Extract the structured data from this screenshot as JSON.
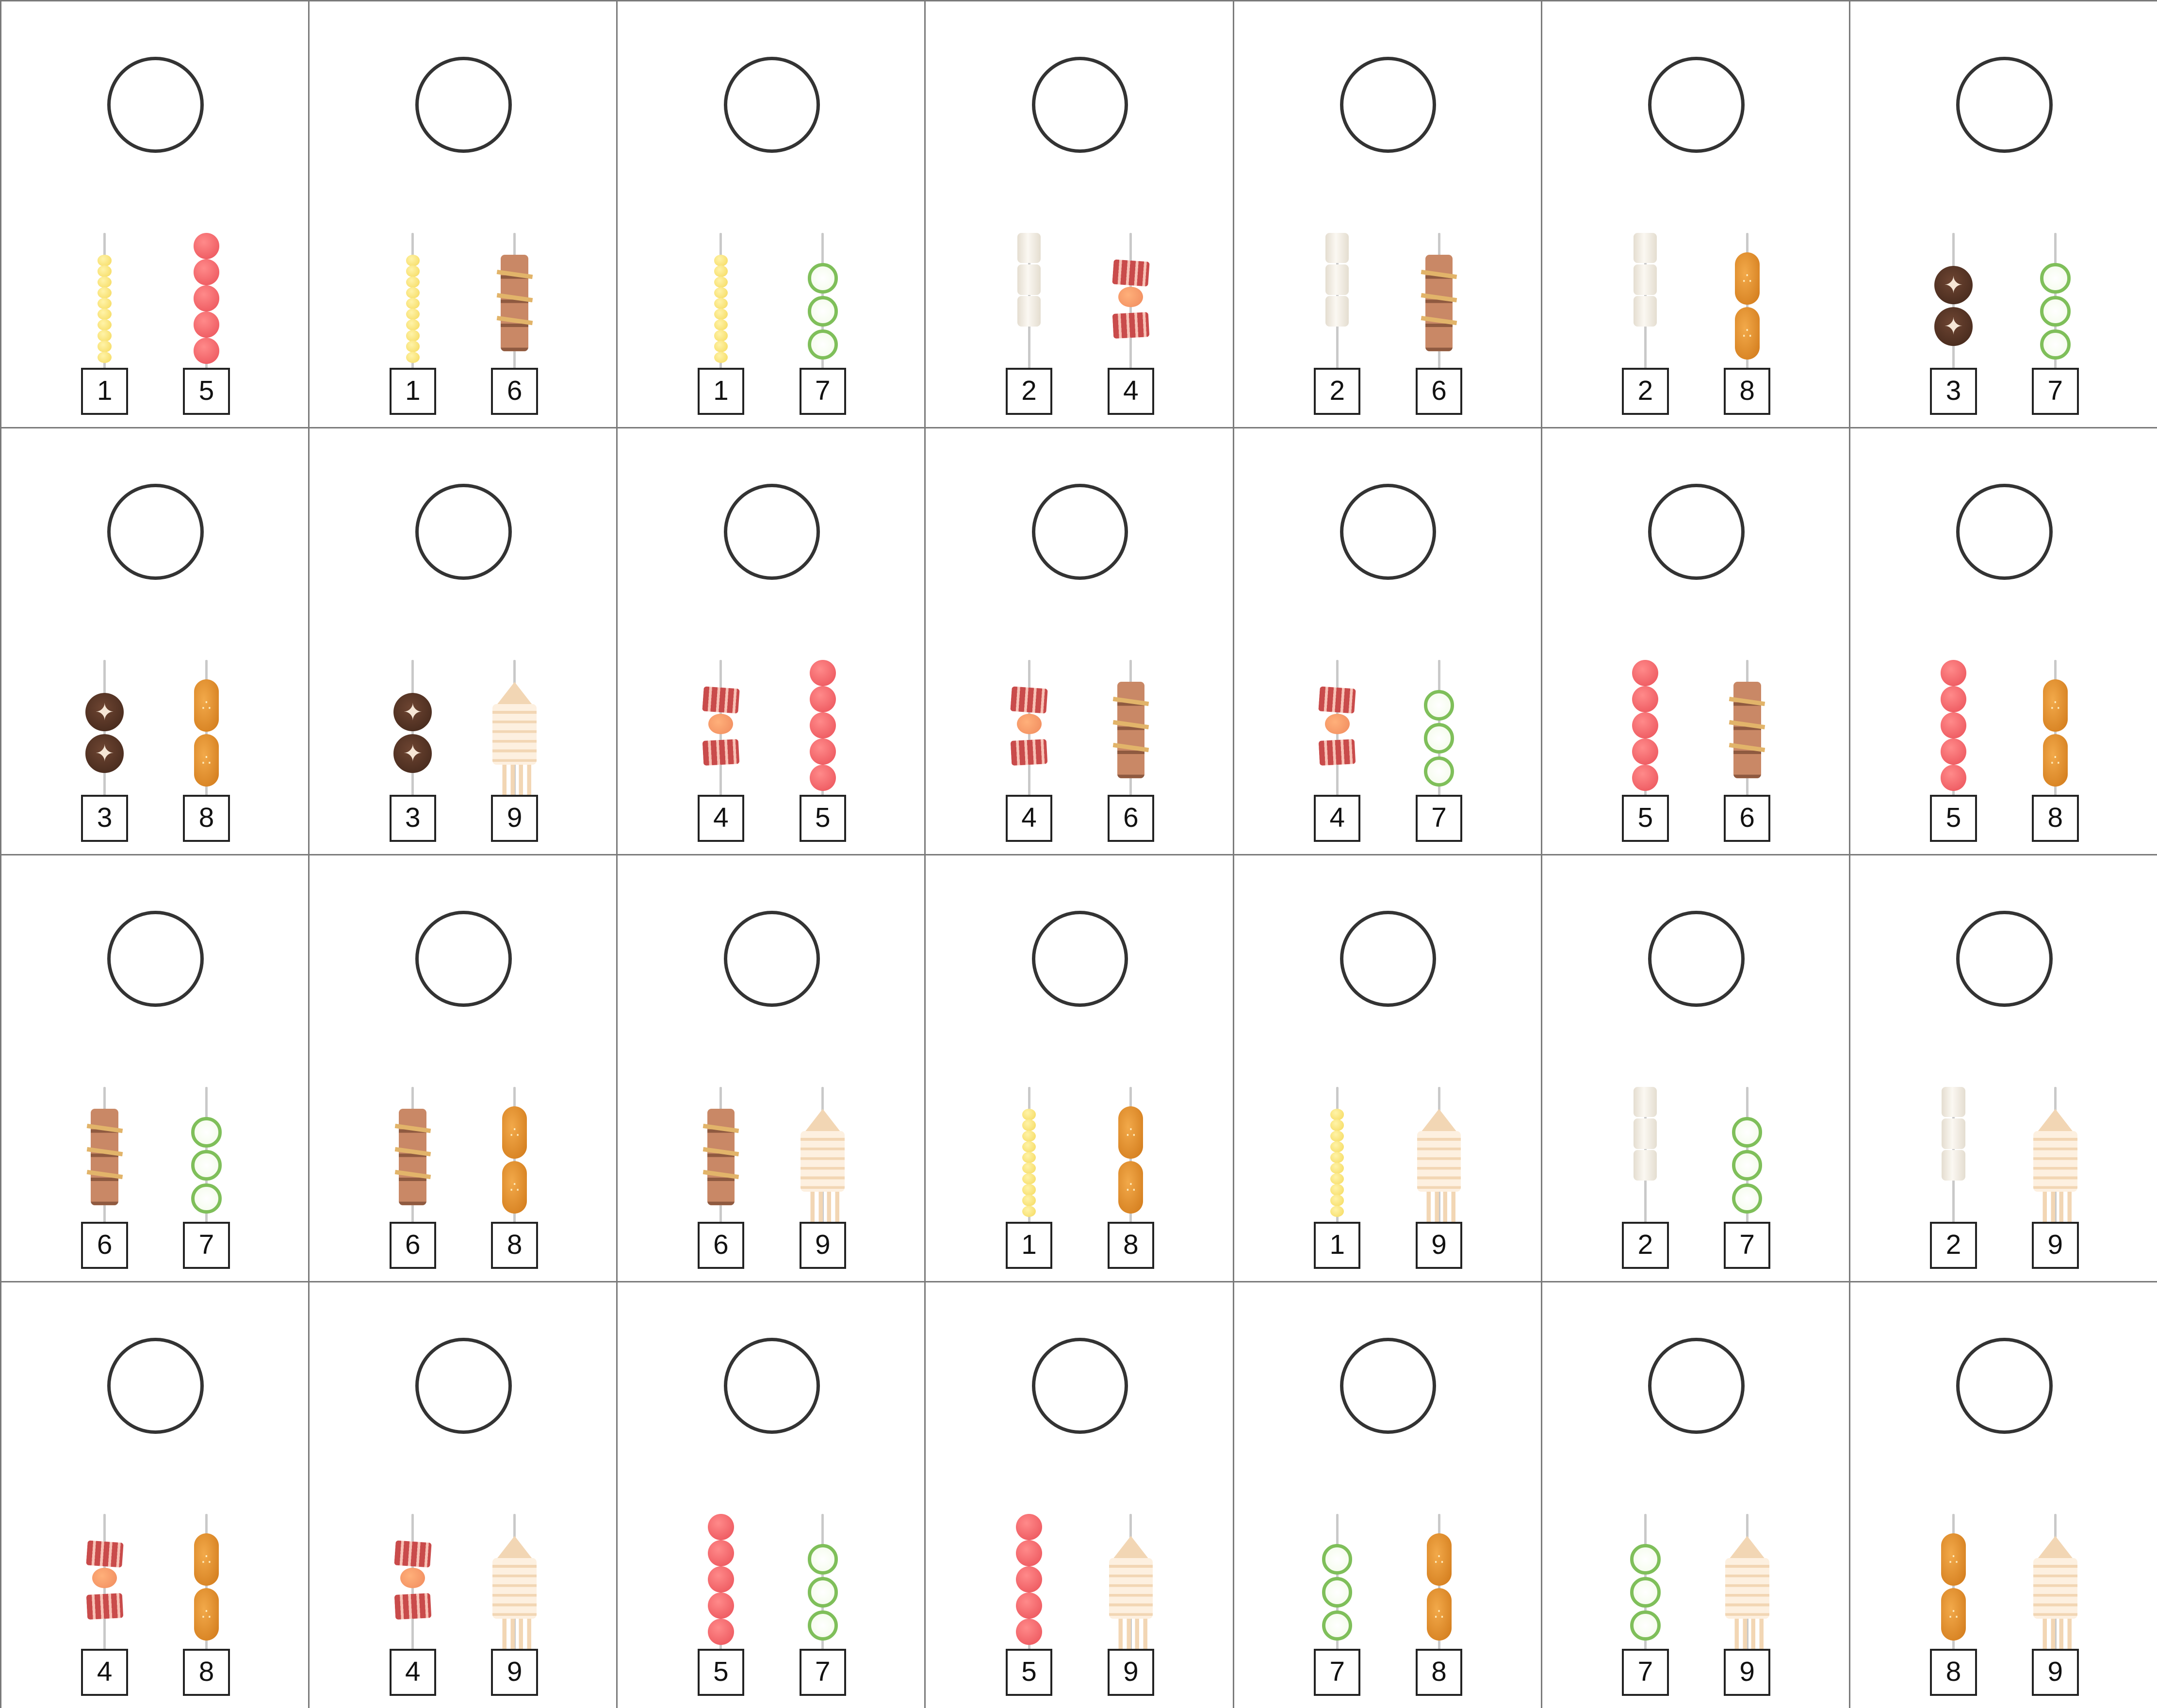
{
  "board": {
    "rows": 4,
    "cols": 7
  },
  "skewer_types": {
    "1": {
      "name": "corn-kernels-skewer",
      "colors": [
        "#fff3a8",
        "#f5d95c"
      ]
    },
    "2": {
      "name": "rice-cake-skewer",
      "colors": [
        "#fbf8f2",
        "#e4ddd0"
      ]
    },
    "3": {
      "name": "shiitake-mushroom-skewer",
      "colors": [
        "#6e4532",
        "#3f2519"
      ]
    },
    "4": {
      "name": "bacon-wrap-skewer",
      "colors": [
        "#c94b4b",
        "#f7c1b5",
        "#f08a5d"
      ]
    },
    "5": {
      "name": "meatball-skewer",
      "colors": [
        "#ff8a8a",
        "#ea4f57"
      ]
    },
    "6": {
      "name": "tied-meat-skewer",
      "colors": [
        "#c98866",
        "#8f5a40",
        "#e2b46a"
      ]
    },
    "7": {
      "name": "cucumber-slice-skewer",
      "colors": [
        "#f3fbe9",
        "#7fbf5a"
      ]
    },
    "8": {
      "name": "grilled-bun-skewer",
      "colors": [
        "#f2a94a",
        "#d07818"
      ]
    },
    "9": {
      "name": "squid-skewer",
      "colors": [
        "#fdf0e0",
        "#f2d6b4"
      ]
    }
  },
  "cells": [
    {
      "left": "1",
      "right": "5"
    },
    {
      "left": "1",
      "right": "6"
    },
    {
      "left": "1",
      "right": "7"
    },
    {
      "left": "2",
      "right": "4"
    },
    {
      "left": "2",
      "right": "6"
    },
    {
      "left": "2",
      "right": "8"
    },
    {
      "left": "3",
      "right": "7"
    },
    {
      "left": "3",
      "right": "8"
    },
    {
      "left": "3",
      "right": "9"
    },
    {
      "left": "4",
      "right": "5"
    },
    {
      "left": "4",
      "right": "6"
    },
    {
      "left": "4",
      "right": "7"
    },
    {
      "left": "5",
      "right": "6"
    },
    {
      "left": "5",
      "right": "8"
    },
    {
      "left": "6",
      "right": "7"
    },
    {
      "left": "6",
      "right": "8"
    },
    {
      "left": "6",
      "right": "9"
    },
    {
      "left": "1",
      "right": "8"
    },
    {
      "left": "1",
      "right": "9"
    },
    {
      "left": "2",
      "right": "7"
    },
    {
      "left": "2",
      "right": "9"
    },
    {
      "left": "4",
      "right": "8"
    },
    {
      "left": "4",
      "right": "9"
    },
    {
      "left": "5",
      "right": "7"
    },
    {
      "left": "5",
      "right": "9"
    },
    {
      "left": "7",
      "right": "8"
    },
    {
      "left": "7",
      "right": "9"
    },
    {
      "left": "8",
      "right": "9"
    }
  ]
}
